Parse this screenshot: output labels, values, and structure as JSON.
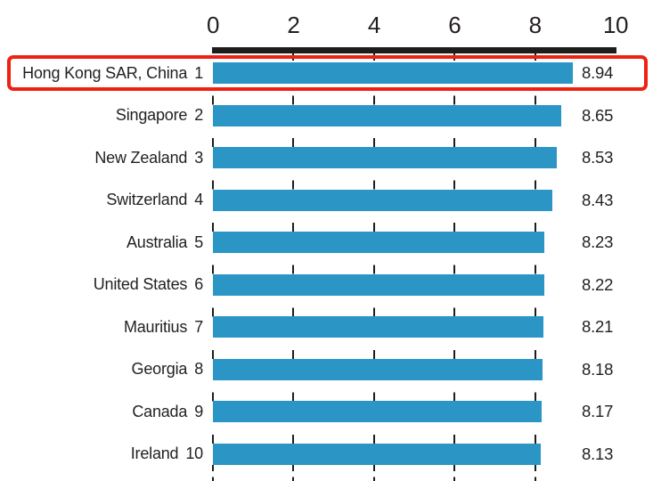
{
  "chart_data": {
    "type": "bar",
    "orientation": "horizontal",
    "title": "",
    "categories": [
      "Hong Kong SAR, China",
      "Singapore",
      "New Zealand",
      "Switzerland",
      "Australia",
      "United States",
      "Mauritius",
      "Georgia",
      "Canada",
      "Ireland"
    ],
    "ranks": [
      "1",
      "2",
      "3",
      "4",
      "5",
      "6",
      "7",
      "8",
      "9",
      "10"
    ],
    "values": [
      8.94,
      8.65,
      8.53,
      8.43,
      8.23,
      8.22,
      8.21,
      8.18,
      8.17,
      8.13
    ],
    "value_labels": [
      "8.94",
      "8.65",
      "8.53",
      "8.43",
      "8.23",
      "8.22",
      "8.21",
      "8.18",
      "8.17",
      "8.13"
    ],
    "xlim": [
      0,
      10
    ],
    "xticks": [
      "0",
      "2",
      "4",
      "6",
      "8",
      "10"
    ],
    "xtick_values": [
      0,
      2,
      4,
      6,
      8,
      10
    ],
    "gridlines_at": [
      0,
      2,
      4,
      6,
      8
    ],
    "grid": "dashed-vertical",
    "legend": "none",
    "axis_position": "top",
    "highlighted_row": 0
  },
  "colors": {
    "bar": "#2b95c6",
    "highlight_border": "#ee2213",
    "axis": "#1d1d1b",
    "text": "#231f20"
  }
}
